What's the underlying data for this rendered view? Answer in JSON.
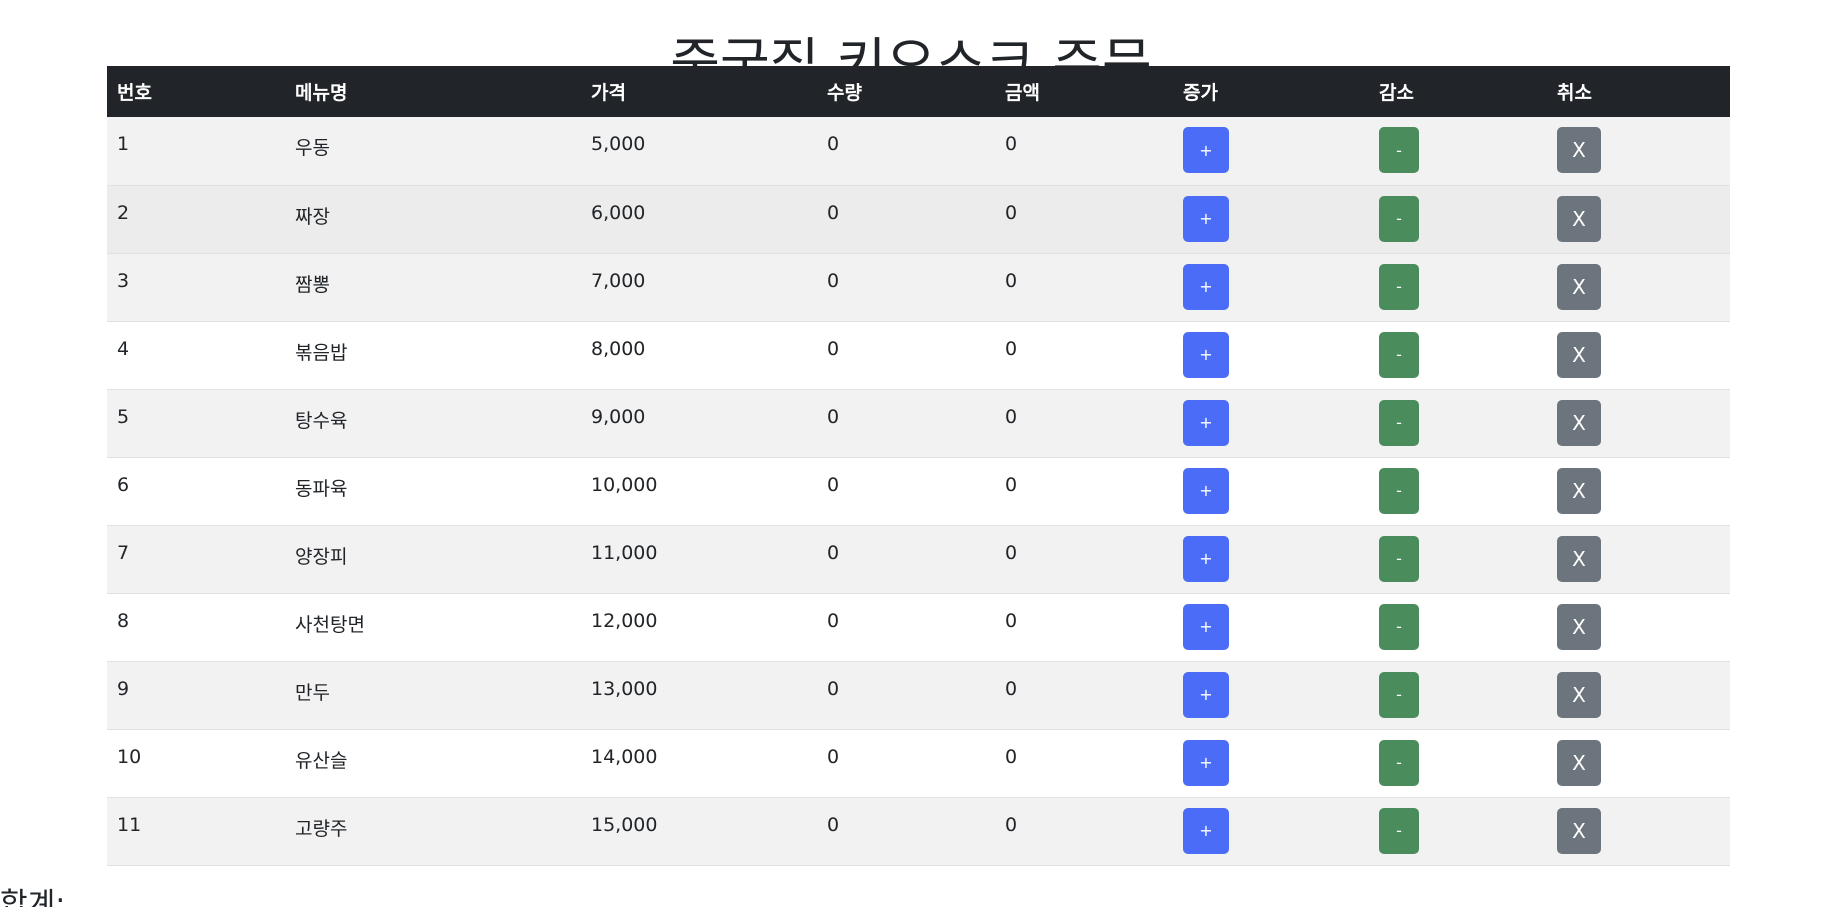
{
  "page": {
    "title": "중국집 키오스크 주문",
    "total_label": "합계:"
  },
  "table": {
    "headers": [
      "번호",
      "메뉴명",
      "가격",
      "수량",
      "금액",
      "증가",
      "감소",
      "취소"
    ],
    "rows": [
      {
        "no": "1",
        "name": "우동",
        "price": "5,000",
        "qty": "0",
        "amount": "0"
      },
      {
        "no": "2",
        "name": "짜장",
        "price": "6,000",
        "qty": "0",
        "amount": "0"
      },
      {
        "no": "3",
        "name": "짬뽕",
        "price": "7,000",
        "qty": "0",
        "amount": "0"
      },
      {
        "no": "4",
        "name": "볶음밥",
        "price": "8,000",
        "qty": "0",
        "amount": "0"
      },
      {
        "no": "5",
        "name": "탕수육",
        "price": "9,000",
        "qty": "0",
        "amount": "0"
      },
      {
        "no": "6",
        "name": "동파육",
        "price": "10,000",
        "qty": "0",
        "amount": "0"
      },
      {
        "no": "7",
        "name": "양장피",
        "price": "11,000",
        "qty": "0",
        "amount": "0"
      },
      {
        "no": "8",
        "name": "사천탕면",
        "price": "12,000",
        "qty": "0",
        "amount": "0"
      },
      {
        "no": "9",
        "name": "만두",
        "price": "13,000",
        "qty": "0",
        "amount": "0"
      },
      {
        "no": "10",
        "name": "유산슬",
        "price": "14,000",
        "qty": "0",
        "amount": "0"
      },
      {
        "no": "11",
        "name": "고량주",
        "price": "15,000",
        "qty": "0",
        "amount": "0"
      }
    ]
  },
  "buttons": {
    "increase_label": "+",
    "decrease_label": "-",
    "cancel_label": "X"
  },
  "colors": {
    "header_bg": "#212529",
    "increase": "#4a6cf7",
    "decrease": "#4a8c5c",
    "cancel": "#6c757d"
  }
}
